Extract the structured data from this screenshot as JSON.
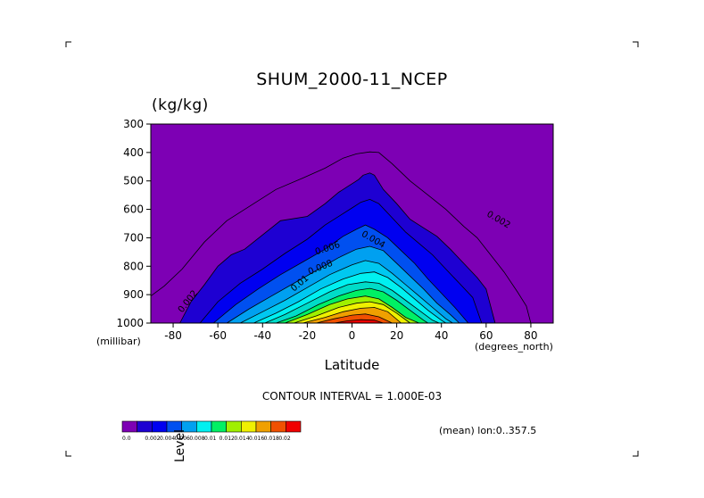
{
  "chart_data": {
    "type": "contour",
    "title": "SHUM_2000-11_NCEP",
    "units": "(kg/kg)",
    "ylabel": "Level",
    "yunit": "(millibar)",
    "xlabel": "Latitude",
    "xunit": "(degrees_north)",
    "xlim": [
      -90,
      90
    ],
    "ylim": [
      1000,
      300
    ],
    "xticks": [
      -80,
      -60,
      -40,
      -20,
      0,
      20,
      40,
      60,
      80
    ],
    "yticks": [
      300,
      400,
      500,
      600,
      700,
      800,
      900,
      1000
    ],
    "contour_interval_text": "CONTOUR INTERVAL = 1.000E-03",
    "mean_text": "(mean) lon:0..357.5",
    "contour_labels": [
      "0.002",
      "0.002",
      "0.004",
      "0.006",
      "0.008",
      "0.01"
    ],
    "colorbar": {
      "levels": [
        "0.0",
        "0.002",
        "0.004",
        "0.006",
        "0.008",
        "0.01",
        "0.012",
        "0.014",
        "0.016",
        "0.018",
        "0.02"
      ],
      "colors": [
        "#7d00b4",
        "#1e00d2",
        "#0000f0",
        "#0050f0",
        "#00a0f0",
        "#00f0f0",
        "#00f064",
        "#a0f000",
        "#f0f000",
        "#f0a000",
        "#f05000",
        "#f00000"
      ]
    },
    "contours": [
      {
        "level": 0.0,
        "color": "#7d00b4",
        "x": [
          -90,
          90,
          90,
          -90
        ],
        "p": [
          300,
          300,
          1000,
          1000
        ]
      },
      {
        "level": 0.002,
        "color": "#1e00d2",
        "x": [
          -77,
          -72,
          -66,
          -60,
          -54,
          -48,
          -40,
          -32,
          -20,
          -12,
          -6,
          -2,
          1,
          3,
          5,
          8,
          10,
          14,
          20,
          26,
          32,
          38,
          44,
          50,
          56,
          60,
          64
        ],
        "p": [
          1000,
          925,
          865,
          800,
          760,
          740,
          690,
          640,
          625,
          580,
          540,
          520,
          505,
          495,
          480,
          472,
          480,
          530,
          580,
          635,
          665,
          695,
          740,
          790,
          840,
          880,
          1000
        ]
      },
      {
        "level": 0.003,
        "color": "#0000f0",
        "x": [
          -68,
          -60,
          -50,
          -40,
          -30,
          -20,
          -12,
          -5,
          0,
          4,
          8,
          12,
          18,
          24,
          30,
          36,
          42,
          48,
          54,
          58
        ],
        "p": [
          1000,
          925,
          860,
          810,
          755,
          705,
          655,
          620,
          595,
          575,
          565,
          580,
          630,
          680,
          720,
          760,
          810,
          860,
          910,
          1000
        ]
      },
      {
        "level": 0.004,
        "color": "#0050f0",
        "x": [
          -62,
          -52,
          -42,
          -32,
          -22,
          -12,
          -4,
          2,
          6,
          10,
          16,
          22,
          28,
          34,
          40,
          46,
          52
        ],
        "p": [
          1000,
          935,
          880,
          830,
          785,
          740,
          695,
          670,
          655,
          670,
          700,
          745,
          790,
          845,
          895,
          945,
          1000
        ]
      },
      {
        "level": 0.005,
        "color": "#00a0f0",
        "x": [
          -56,
          -46,
          -36,
          -26,
          -16,
          -6,
          2,
          8,
          14,
          20,
          26,
          32,
          38,
          44,
          48
        ],
        "p": [
          1000,
          950,
          905,
          860,
          815,
          770,
          740,
          730,
          745,
          790,
          835,
          880,
          930,
          970,
          1000
        ]
      },
      {
        "level": 0.006,
        "color": "#00c8f0",
        "x": [
          -50,
          -40,
          -30,
          -20,
          -10,
          0,
          6,
          12,
          18,
          24,
          30,
          36,
          42,
          45
        ],
        "p": [
          1000,
          960,
          920,
          875,
          830,
          795,
          780,
          790,
          825,
          865,
          905,
          945,
          985,
          1000
        ]
      },
      {
        "level": 0.007,
        "color": "#00f0f0",
        "x": [
          -44,
          -34,
          -24,
          -14,
          -4,
          4,
          10,
          16,
          22,
          28,
          34,
          40,
          42
        ],
        "p": [
          1000,
          965,
          925,
          880,
          845,
          825,
          820,
          840,
          875,
          915,
          955,
          990,
          1000
        ]
      },
      {
        "level": 0.008,
        "color": "#00dcc8",
        "x": [
          -39,
          -30,
          -20,
          -10,
          -2,
          6,
          12,
          18,
          24,
          30,
          36,
          39
        ],
        "p": [
          1000,
          970,
          930,
          890,
          865,
          855,
          860,
          885,
          920,
          955,
          990,
          1000
        ]
      },
      {
        "level": 0.01,
        "color": "#00f064",
        "x": [
          -34,
          -25,
          -15,
          -6,
          2,
          8,
          14,
          20,
          26,
          32,
          34
        ],
        "p": [
          1000,
          975,
          935,
          905,
          885,
          878,
          890,
          920,
          955,
          990,
          1000
        ]
      },
      {
        "level": 0.012,
        "color": "#a0f000",
        "x": [
          -30,
          -20,
          -10,
          -2,
          6,
          12,
          18,
          24,
          30
        ],
        "p": [
          1000,
          970,
          935,
          915,
          905,
          915,
          945,
          980,
          1000
        ]
      },
      {
        "level": 0.014,
        "color": "#f0f000",
        "x": [
          -26,
          -16,
          -6,
          2,
          8,
          14,
          20,
          26
        ],
        "p": [
          1000,
          975,
          945,
          930,
          925,
          935,
          965,
          1000
        ]
      },
      {
        "level": 0.016,
        "color": "#f0a000",
        "x": [
          -22,
          -12,
          -4,
          4,
          10,
          16,
          22
        ],
        "p": [
          1000,
          980,
          960,
          948,
          945,
          960,
          1000
        ]
      },
      {
        "level": 0.018,
        "color": "#f05000",
        "x": [
          -16,
          -8,
          0,
          6,
          12,
          18
        ],
        "p": [
          1000,
          985,
          972,
          968,
          978,
          1000
        ]
      },
      {
        "level": 0.02,
        "color": "#f00000",
        "x": [
          -8,
          -2,
          4,
          10,
          14
        ],
        "p": [
          1000,
          992,
          988,
          990,
          1000
        ]
      }
    ],
    "outer_line": {
      "level": 0.001,
      "x": [
        -90,
        -84,
        -76,
        -66,
        -56,
        -44,
        -34,
        -22,
        -12,
        -4,
        2,
        8,
        12,
        18,
        26,
        34,
        42,
        50,
        56,
        62,
        68,
        74,
        78,
        80
      ],
      "p": [
        905,
        870,
        810,
        715,
        640,
        580,
        530,
        490,
        455,
        420,
        405,
        398,
        400,
        440,
        500,
        550,
        600,
        660,
        700,
        760,
        820,
        890,
        940,
        1000
      ]
    }
  }
}
